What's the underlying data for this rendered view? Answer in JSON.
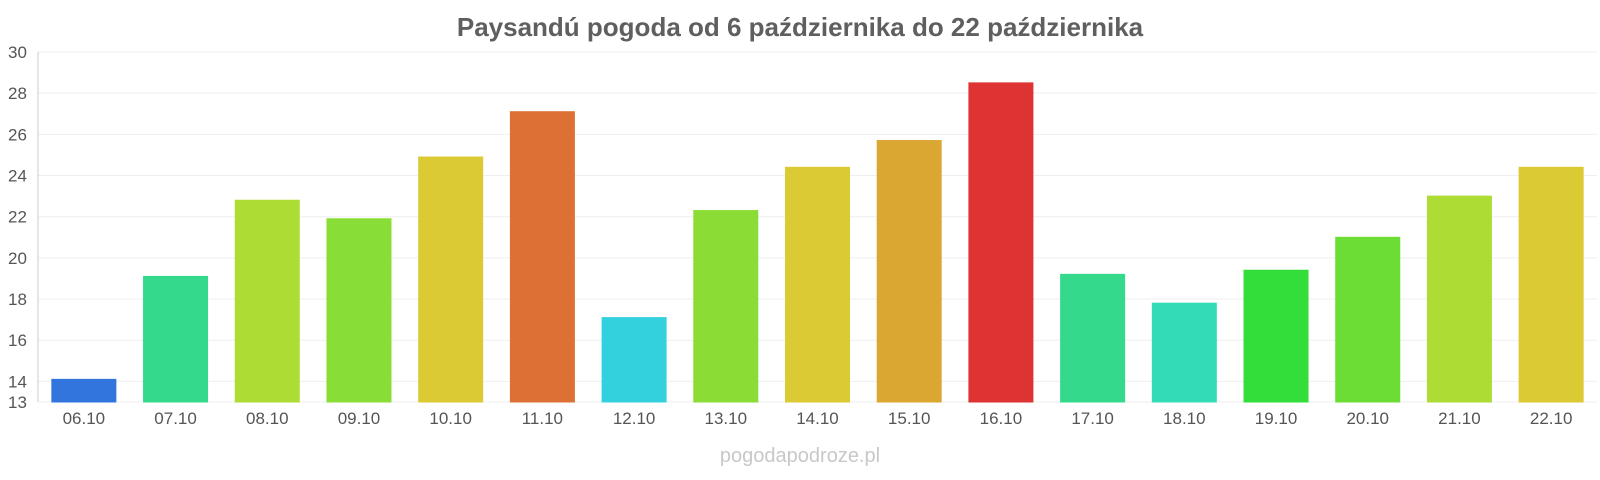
{
  "chart_data": {
    "type": "bar",
    "title": "Paysandú pogoda od 6 października do 22 października",
    "xlabel": "",
    "ylabel": "",
    "ylim": [
      13,
      30
    ],
    "yticks": [
      13,
      14,
      16,
      18,
      20,
      22,
      24,
      26,
      28,
      30
    ],
    "grid": true,
    "categories": [
      "06.10",
      "07.10",
      "08.10",
      "09.10",
      "10.10",
      "11.10",
      "12.10",
      "13.10",
      "14.10",
      "15.10",
      "16.10",
      "17.10",
      "18.10",
      "19.10",
      "20.10",
      "21.10",
      "22.10"
    ],
    "values": [
      14.1,
      19.1,
      22.8,
      21.9,
      24.9,
      27.1,
      17.1,
      22.3,
      24.4,
      25.7,
      28.5,
      19.2,
      17.8,
      19.4,
      21.0,
      23.0,
      24.4
    ],
    "colors": [
      "#3275dd",
      "#34d98c",
      "#addd34",
      "#88dd36",
      "#dbca33",
      "#dd7034",
      "#33d0dd",
      "#8bdd36",
      "#dbca33",
      "#dba733",
      "#dd3333",
      "#34d98c",
      "#34dbb7",
      "#33dd3a",
      "#6cdd34",
      "#addd34",
      "#dbca33"
    ]
  },
  "watermark": "pogodapodroze.pl"
}
